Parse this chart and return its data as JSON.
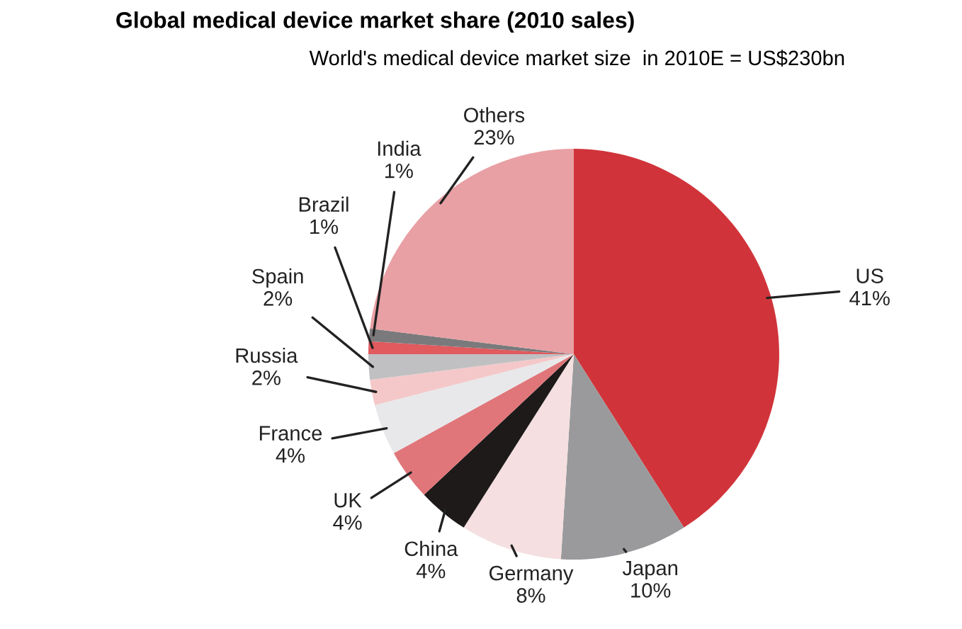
{
  "chart_data": {
    "type": "pie",
    "title": "Global medical device market share (2010 sales)",
    "subtitle": "World's medical device market size  in 2010E = US$230bn",
    "categories": [
      "US",
      "Japan",
      "Germany",
      "China",
      "UK",
      "France",
      "Russia",
      "Spain",
      "Brazil",
      "India",
      "Others"
    ],
    "values": [
      41,
      10,
      8,
      4,
      4,
      4,
      2,
      2,
      1,
      1,
      23
    ],
    "value_labels": [
      "41%",
      "10%",
      "8%",
      "4%",
      "4%",
      "4%",
      "2%",
      "2%",
      "1%",
      "1%",
      "23%"
    ],
    "colors": [
      "#d0343a",
      "#9a9a9c",
      "#f5dfe0",
      "#1e1a1a",
      "#e0767a",
      "#e8e8ea",
      "#f4c8c9",
      "#c0c0c2",
      "#e05a5e",
      "#7a7a7c",
      "#e8a0a4"
    ]
  }
}
